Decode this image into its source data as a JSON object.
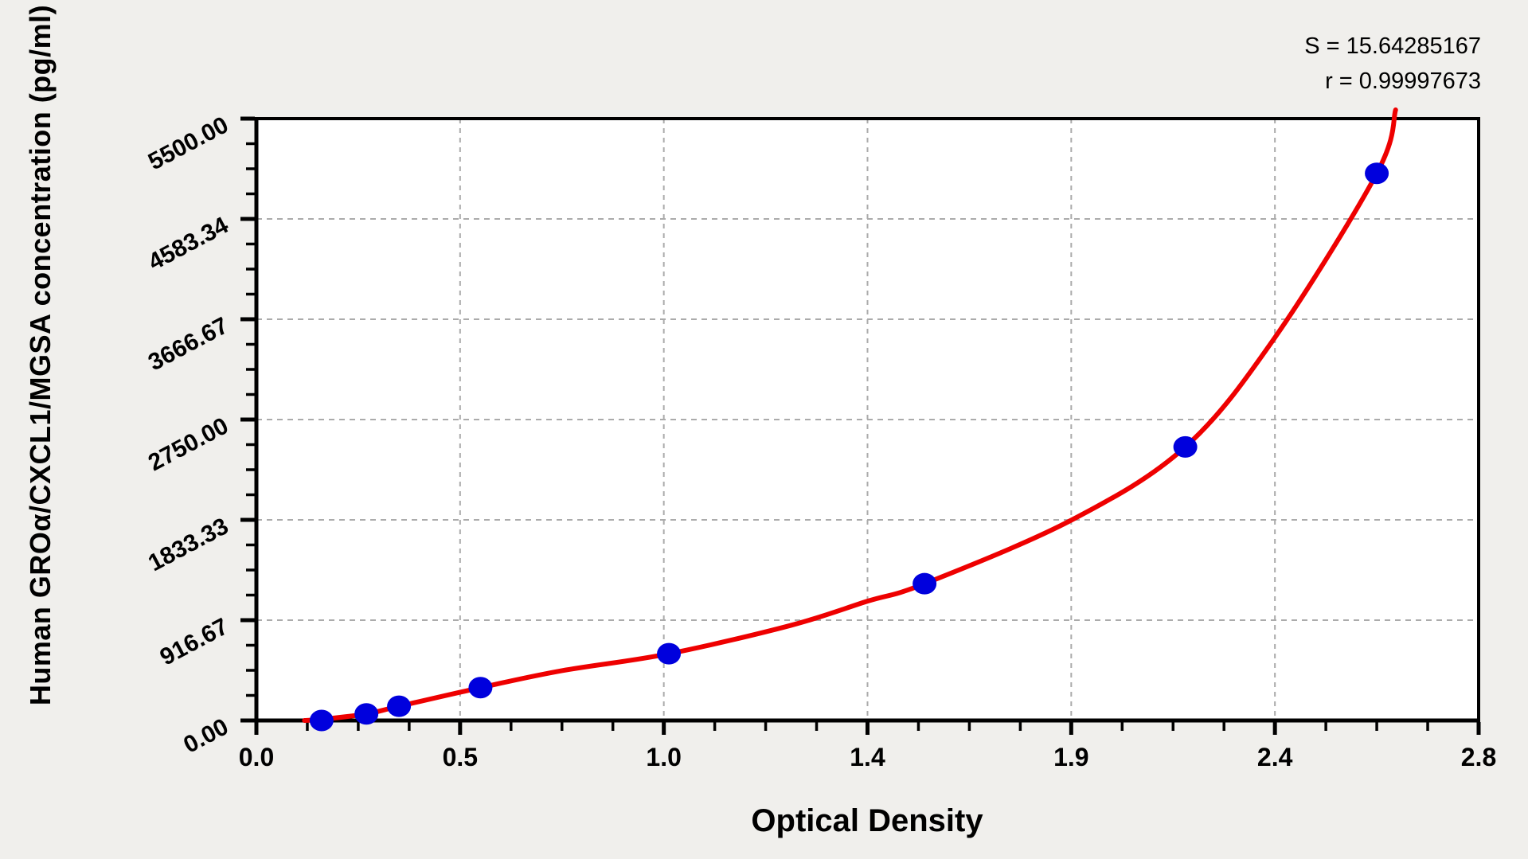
{
  "figure": {
    "background_color": "#f0efec",
    "plot_background": "#ffffff",
    "x_axis_title": "Optical Density",
    "y_axis_title": "Human GROα/CXCL1/MGSA concentration (pg/ml)",
    "annotation": {
      "line1": "S = 15.64285167",
      "line2": "r = 0.99997673"
    }
  },
  "chart_data": {
    "type": "scatter",
    "title": "",
    "xlabel": "Optical Density",
    "ylabel": "Human GROα/CXCL1/MGSA concentration (pg/ml)",
    "annotations": [
      "S = 15.64285167",
      "r = 0.99997673"
    ],
    "xlim": [
      0,
      2.8
    ],
    "ylim": [
      0,
      5500
    ],
    "x_ticks": {
      "labels": [
        "0.0",
        "0.5",
        "1.0",
        "1.4",
        "1.9",
        "2.4",
        "2.8"
      ],
      "values": [
        0,
        0.5,
        1.0,
        1.4,
        1.9,
        2.4,
        2.8
      ]
    },
    "y_ticks": {
      "labels": [
        "0.00",
        "916.67",
        "1833.33",
        "2750.00",
        "3666.67",
        "4583.34",
        "5500.00"
      ],
      "values": [
        0,
        916.67,
        1833.33,
        2750.0,
        3666.67,
        4583.34,
        5500.0
      ]
    },
    "x_minor_divisions": 4,
    "y_minor_divisions": 4,
    "grid": {
      "show": true,
      "style": "dashed",
      "color": "#ababab"
    },
    "legend": "none",
    "series": [
      {
        "name": "standard-points",
        "type": "scatter",
        "points": [
          {
            "od": 0.16,
            "conc": 0
          },
          {
            "od": 0.27,
            "conc": 60
          },
          {
            "od": 0.35,
            "conc": 130
          },
          {
            "od": 0.55,
            "conc": 300
          },
          {
            "od": 1.01,
            "conc": 610
          },
          {
            "od": 1.54,
            "conc": 1250
          },
          {
            "od": 2.18,
            "conc": 2500
          },
          {
            "od": 2.6,
            "conc": 5000
          }
        ]
      },
      {
        "name": "fitted-curve",
        "type": "line",
        "points": [
          [
            0.118,
            0
          ],
          [
            0.16,
            10
          ],
          [
            0.27,
            60
          ],
          [
            0.35,
            130
          ],
          [
            0.55,
            300
          ],
          [
            0.75,
            455
          ],
          [
            1.01,
            610
          ],
          [
            1.25,
            870
          ],
          [
            1.4,
            1090
          ],
          [
            1.54,
            1250
          ],
          [
            1.9,
            1830
          ],
          [
            2.18,
            2500
          ],
          [
            2.4,
            3500
          ],
          [
            2.6,
            5000
          ],
          [
            2.637,
            5580
          ]
        ]
      }
    ],
    "colors": {
      "curve": "#ee0000",
      "points": "#0000dd",
      "axis": "#000000",
      "grid": "#ababab",
      "text": "#000000"
    }
  }
}
